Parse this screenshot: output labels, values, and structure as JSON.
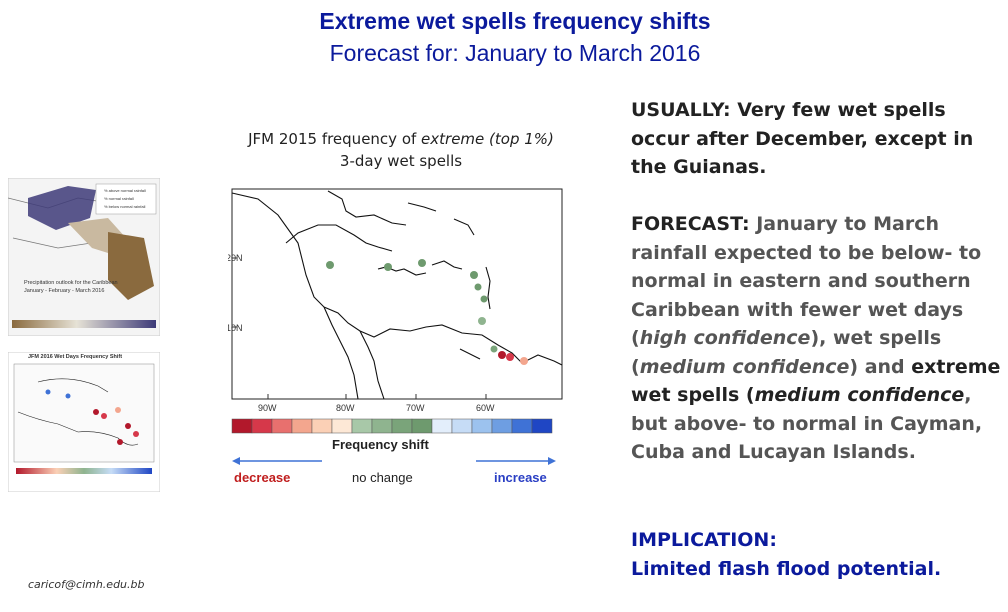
{
  "header": {
    "title": "Extreme wet spells frequency shifts",
    "subtitle": "Forecast for: January to March 2016"
  },
  "map": {
    "caption_part1": "JFM 2015 frequency of ",
    "caption_italic": "extreme (top 1%)",
    "caption_line2": "3-day wet spells",
    "lat_labels": [
      "20N",
      "10N"
    ],
    "lon_labels": [
      "90W",
      "80W",
      "70W",
      "60W"
    ],
    "legend_title": "Frequency shift",
    "decrease_label": "decrease",
    "nochange_label": "no change",
    "increase_label": "increase",
    "colors": {
      "decrease": "#c01e1e",
      "increase": "#2a3fc4",
      "nochange": "#6e9a6e",
      "land_outline": "#111111"
    },
    "color_scale": [
      "#b2182b",
      "#d6384a",
      "#e8706e",
      "#f3a68e",
      "#fbd0b6",
      "#fde8d6",
      "#a8c8a8",
      "#8fb48f",
      "#7aa47a",
      "#6e9a6e",
      "#e3eefb",
      "#c6dcf6",
      "#9cc2ee",
      "#6e9ee2",
      "#3f72d6",
      "#1f46c4"
    ]
  },
  "thumbnails": {
    "top_title": "Precipitation outlook for the Caribbean",
    "top_subtitle": "January - February - March 2016",
    "top_legend": [
      "% above normal rainfall",
      "% normal rainfall",
      "% below normal rainfall"
    ],
    "bottom_title": "JFM 2016 Wet Days Frequency Shift"
  },
  "contact": {
    "email": "caricof@cimh.edu.bb"
  },
  "usually": {
    "text": "USUALLY: Very few wet spells occur after December, except in the Guianas."
  },
  "forecast": {
    "label": "FORECAST:",
    "t1": " January to March rainfall expected to be below- to normal in eastern and southern Caribbean with fewer wet days (",
    "t2": "high confidence",
    "t3": "), wet spells (",
    "t4": "medium confidence",
    "t5": ") and ",
    "t6": "extreme wet spells (",
    "t7": "medium confidence",
    "t8": ",",
    "t9": " but above- to normal in Cayman, Cuba and Lucayan Islands."
  },
  "implication": {
    "label": "IMPLICATION:",
    "text": "Limited flash flood potential."
  }
}
